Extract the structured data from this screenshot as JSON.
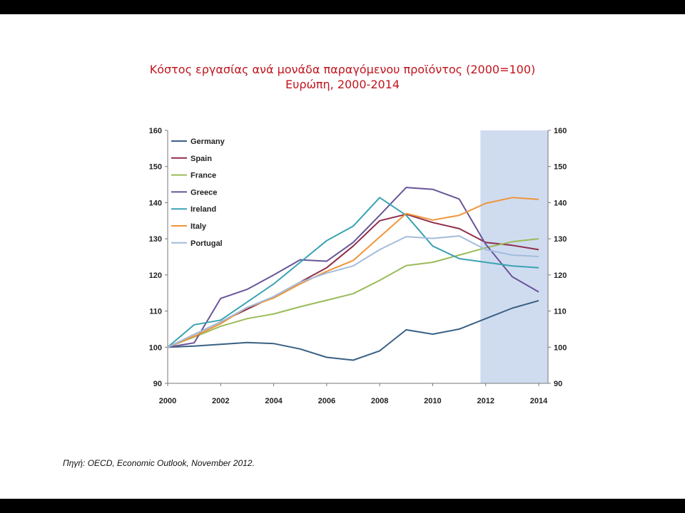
{
  "slide": {
    "source_prefix": "Πηγή:",
    "source_text": " OECD, Economic Outlook, November 2012."
  },
  "chart_data": {
    "type": "line",
    "title": "Κόστος εργασίας ανά μονάδα παραγόμενου προϊόντος (2000=100)",
    "subtitle": "Ευρώπη, 2000-2014",
    "xlabel": "",
    "ylabel": "",
    "x": [
      2000,
      2001,
      2002,
      2003,
      2004,
      2005,
      2006,
      2007,
      2008,
      2009,
      2010,
      2011,
      2012,
      2013,
      2014
    ],
    "x_ticks": [
      "2000",
      "2002",
      "2004",
      "2006",
      "2008",
      "2010",
      "2012",
      "2014"
    ],
    "y_ticks": [
      "90",
      "100",
      "110",
      "120",
      "130",
      "140",
      "150",
      "160"
    ],
    "ylim": [
      90,
      160
    ],
    "xlim": [
      2000,
      2014
    ],
    "grid": false,
    "legend_position": "top-left",
    "shaded_region": {
      "x_start": 2011.8,
      "x_end": 2014.4,
      "color": "#cfdcf0"
    },
    "series": [
      {
        "name": "Germany",
        "color": "#3a6083",
        "values": [
          100,
          100.3,
          100.8,
          101.3,
          101,
          99.5,
          97.2,
          96.4,
          99,
          104.8,
          103.6,
          105,
          107.9,
          110.8,
          112.9
        ]
      },
      {
        "name": "Spain",
        "color": "#8e2e4a",
        "values": [
          100,
          103.5,
          107,
          110.5,
          114,
          118,
          122,
          128,
          135,
          136.8,
          134.5,
          132.8,
          129,
          128.2,
          127
        ]
      },
      {
        "name": "France",
        "color": "#9bbb59",
        "values": [
          100,
          102.8,
          105.8,
          107.9,
          109.2,
          111.2,
          113,
          114.8,
          118.5,
          122.6,
          123.5,
          125.5,
          127.5,
          129.2,
          130
        ]
      },
      {
        "name": "Greece",
        "color": "#69559a",
        "values": [
          100,
          101.2,
          113.5,
          116,
          120,
          124.2,
          123.8,
          129,
          136.5,
          144.2,
          143.7,
          141,
          128.5,
          119.5,
          115.3
        ]
      },
      {
        "name": "Ireland",
        "color": "#3aa3b2",
        "values": [
          100,
          106.2,
          107.5,
          112.5,
          117.5,
          123.5,
          129.5,
          133.5,
          141.4,
          136.5,
          128,
          124.5,
          123.5,
          122.5,
          122
        ]
      },
      {
        "name": "Italy",
        "color": "#f0953a",
        "values": [
          100,
          103,
          106.5,
          111,
          113.6,
          117.5,
          121,
          124,
          130.5,
          137,
          135.2,
          136.5,
          139.8,
          141.4,
          140.9
        ]
      },
      {
        "name": "Portugal",
        "color": "#a3bcdc",
        "values": [
          100,
          103.5,
          107,
          111,
          114,
          118,
          120.5,
          122.5,
          127,
          130.6,
          130.1,
          130.8,
          127,
          125.5,
          125.1
        ]
      }
    ]
  }
}
